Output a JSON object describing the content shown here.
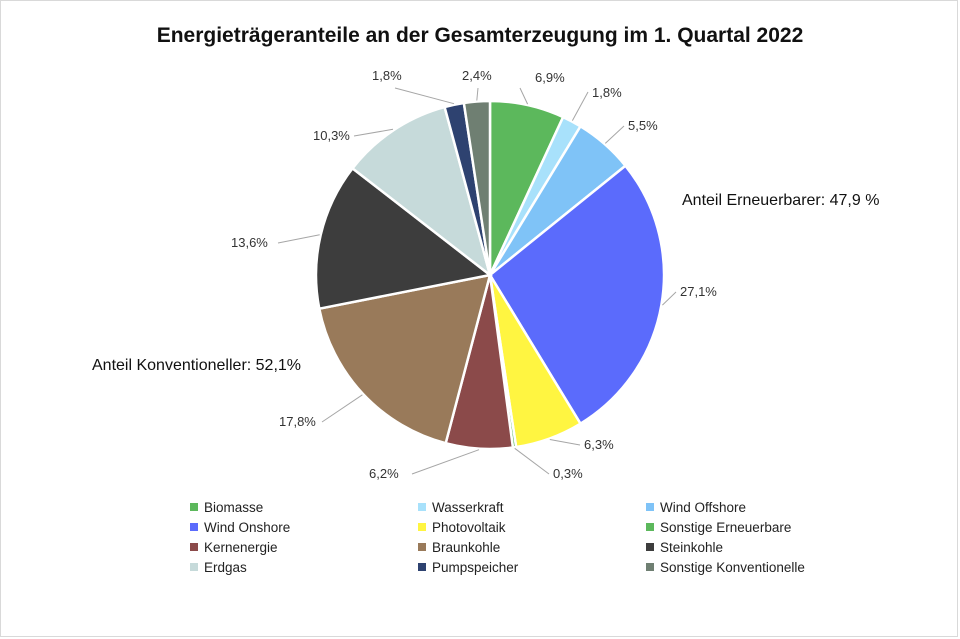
{
  "chart_data": {
    "type": "pie",
    "title": "Energieträgeranteile an der Gesamterzeugung im 1. Quartal 2022",
    "slices": [
      {
        "name": "Biomasse",
        "value": 6.9,
        "label": "6,9%",
        "color": "#5cb85c"
      },
      {
        "name": "Wasserkraft",
        "value": 1.8,
        "label": "1,8%",
        "color": "#a8e1fb"
      },
      {
        "name": "Wind Offshore",
        "value": 5.5,
        "label": "5,5%",
        "color": "#7fc3f7"
      },
      {
        "name": "Wind Onshore",
        "value": 27.1,
        "label": "27,1%",
        "color": "#5b6bfc"
      },
      {
        "name": "Photovoltaik",
        "value": 6.3,
        "label": "6,3%",
        "color": "#fff541"
      },
      {
        "name": "Sonstige Erneuerbare",
        "value": 0.3,
        "label": "0,3%",
        "color": "#5cb85c"
      },
      {
        "name": "Kernenergie",
        "value": 6.2,
        "label": "6,2%",
        "color": "#8b4a4a"
      },
      {
        "name": "Braunkohle",
        "value": 17.8,
        "label": "17,8%",
        "color": "#997a5a"
      },
      {
        "name": "Steinkohle",
        "value": 13.6,
        "label": "13,6%",
        "color": "#3d3d3d"
      },
      {
        "name": "Erdgas",
        "value": 10.3,
        "label": "10,3%",
        "color": "#c6dada"
      },
      {
        "name": "Pumpspeicher",
        "value": 1.8,
        "label": "1,8%",
        "color": "#2e4270"
      },
      {
        "name": "Sonstige Konventionelle",
        "value": 2.4,
        "label": "2,4%",
        "color": "#6f7f72"
      }
    ],
    "annotations": {
      "renewables": "Anteil Erneuerbarer: 47,9 %",
      "conventional": "Anteil Konventioneller: 52,1%"
    },
    "legend_position": "bottom"
  }
}
